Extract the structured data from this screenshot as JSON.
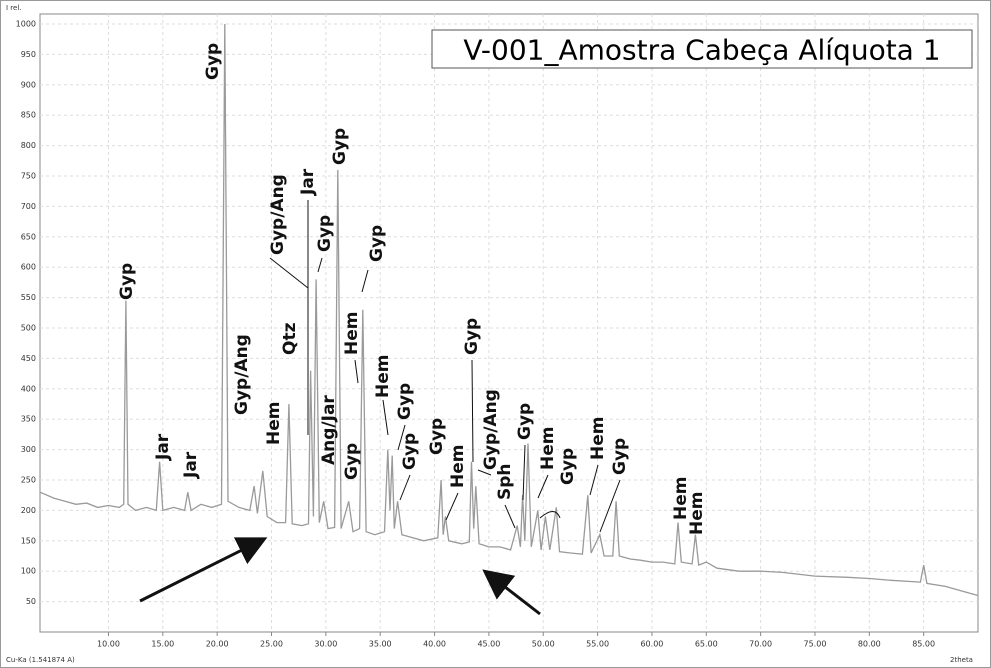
{
  "chart_data": {
    "type": "line",
    "title": "V-001_Amostra Cabeça Alíquota 1",
    "y_label": "I rel.",
    "x_label": "2theta",
    "radiation": "Cu-Ka (1.541874 A)",
    "color": "#9a9a9a",
    "grid": true,
    "xlim": [
      3.7,
      90
    ],
    "ylim": [
      0,
      1000
    ],
    "xticks": [
      {
        "value": 10,
        "label": "10.00"
      },
      {
        "value": 15,
        "label": "15.00"
      },
      {
        "value": 20,
        "label": "20.00"
      },
      {
        "value": 25,
        "label": "25.00"
      },
      {
        "value": 30,
        "label": "30.00"
      },
      {
        "value": 35,
        "label": "35.00"
      },
      {
        "value": 40,
        "label": "40.00"
      },
      {
        "value": 45,
        "label": "45.00"
      },
      {
        "value": 50,
        "label": "50.00"
      },
      {
        "value": 55,
        "label": "55.00"
      },
      {
        "value": 60,
        "label": "60.00"
      },
      {
        "value": 65,
        "label": "65.00"
      },
      {
        "value": 70,
        "label": "70.00"
      },
      {
        "value": 75,
        "label": "75.00"
      },
      {
        "value": 80,
        "label": "80.00"
      },
      {
        "value": 85,
        "label": "85.00"
      }
    ],
    "yticks": [
      50,
      100,
      150,
      200,
      250,
      300,
      350,
      400,
      450,
      500,
      550,
      600,
      650,
      700,
      750,
      800,
      850,
      900,
      950,
      1000
    ],
    "x": [
      3.7,
      5,
      6,
      7,
      8,
      9,
      10,
      11,
      11.4,
      11.6,
      11.8,
      12.5,
      13.5,
      14.4,
      14.7,
      15.0,
      16,
      17.0,
      17.3,
      17.6,
      18.5,
      19.5,
      20.4,
      20.7,
      21.0,
      22,
      23.0,
      23.4,
      23.7,
      24.2,
      24.6,
      25.5,
      26.3,
      26.6,
      26.9,
      27.8,
      28.4,
      28.6,
      28.85,
      29.1,
      29.4,
      29.8,
      30.2,
      30.8,
      31.1,
      31.4,
      32.1,
      32.5,
      33.1,
      33.4,
      33.7,
      34.5,
      35.4,
      35.7,
      35.9,
      36.1,
      36.3,
      36.6,
      37,
      38,
      39,
      40.3,
      40.6,
      40.8,
      41.0,
      41.3,
      42.5,
      43.2,
      43.4,
      43.6,
      43.8,
      44.1,
      45,
      46,
      47,
      47.6,
      47.9,
      48.1,
      48.3,
      48.6,
      48.9,
      49.5,
      49.8,
      50.2,
      50.6,
      51.2,
      51.5,
      52.5,
      53.6,
      54.1,
      54.4,
      55.2,
      55.6,
      56.4,
      56.7,
      57.0,
      58,
      59,
      60,
      61,
      62.1,
      62.4,
      62.7,
      63.7,
      64.0,
      64.3,
      65,
      66,
      68,
      70,
      72,
      75,
      78,
      80,
      82,
      84.7,
      85.0,
      85.3,
      87,
      89,
      90
    ],
    "values": [
      230,
      220,
      215,
      210,
      212,
      205,
      208,
      205,
      210,
      545,
      210,
      200,
      205,
      200,
      280,
      200,
      205,
      200,
      230,
      200,
      210,
      205,
      210,
      1000,
      215,
      205,
      200,
      240,
      195,
      265,
      190,
      180,
      180,
      375,
      178,
      175,
      178,
      430,
      190,
      580,
      180,
      215,
      170,
      172,
      760,
      170,
      215,
      165,
      170,
      530,
      165,
      160,
      165,
      300,
      200,
      290,
      170,
      215,
      160,
      155,
      150,
      155,
      250,
      160,
      190,
      150,
      145,
      148,
      280,
      170,
      240,
      145,
      140,
      140,
      135,
      175,
      140,
      225,
      150,
      310,
      140,
      200,
      135,
      190,
      135,
      205,
      132,
      130,
      128,
      225,
      130,
      160,
      125,
      125,
      215,
      125,
      120,
      118,
      115,
      115,
      112,
      180,
      115,
      112,
      160,
      110,
      115,
      105,
      100,
      100,
      98,
      92,
      90,
      88,
      85,
      82,
      110,
      80,
      75,
      65,
      60
    ],
    "annotations": [
      "Gyp",
      "Jar",
      "Jar",
      "Gyp",
      "Gyp/Ang",
      "Hem",
      "Qtz",
      "Gyp/Ang",
      "Jar",
      "Gyp",
      "Gyp",
      "Ang/Jar",
      "Gyp",
      "Hem",
      "Gyp",
      "Hem",
      "Gyp",
      "Gyp",
      "Gyp",
      "Hem",
      "Gyp",
      "Gyp/Ang",
      "Sph",
      "Gyp",
      "Hem",
      "Gyp",
      "Hem",
      "Gyp",
      "Hem",
      "Hem"
    ]
  }
}
